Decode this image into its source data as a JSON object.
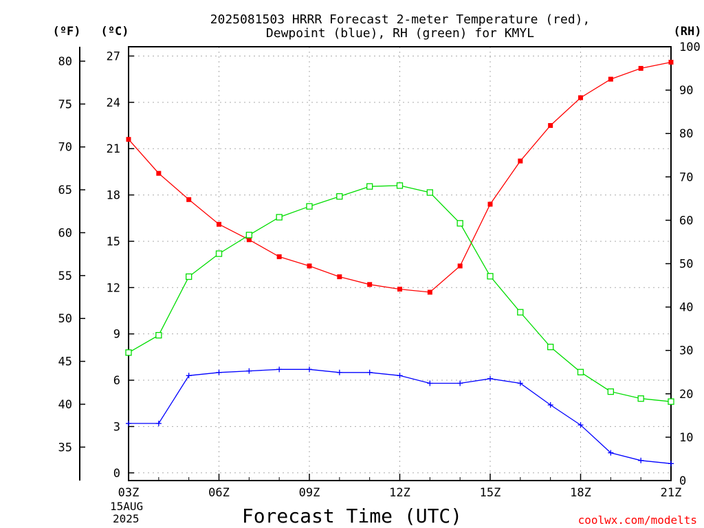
{
  "chart_data": {
    "type": "line",
    "title_line1": "2025081503 HRRR Forecast 2-meter Temperature (red),",
    "title_line2": "Dewpoint (blue), RH (green) for KMYL",
    "xlabel": "Forecast Time (UTC)",
    "unit_f": "(ºF)",
    "unit_c": "(ºC)",
    "unit_rh": "(RH)",
    "watermark": "coolwx.com/modelts",
    "x_date_line1": "15AUG",
    "x_date_line2": "2025",
    "x_hours": [
      3,
      4,
      5,
      6,
      7,
      8,
      9,
      10,
      11,
      12,
      13,
      14,
      15,
      16,
      17,
      18,
      19,
      20,
      21
    ],
    "x_ticks": [
      {
        "hour": 3,
        "label": "03Z"
      },
      {
        "hour": 6,
        "label": "06Z"
      },
      {
        "hour": 9,
        "label": "09Z"
      },
      {
        "hour": 12,
        "label": "12Z"
      },
      {
        "hour": 15,
        "label": "15Z"
      },
      {
        "hour": 18,
        "label": "18Z"
      },
      {
        "hour": 21,
        "label": "21Z"
      }
    ],
    "xlim": [
      3,
      21
    ],
    "ylim_c": [
      -0.5,
      27.6
    ],
    "ylim_rh": [
      0,
      100
    ],
    "y_ticks_c": [
      "0",
      "3",
      "6",
      "9",
      "12",
      "15",
      "18",
      "21",
      "24",
      "27"
    ],
    "y_ticks_f": [
      "35",
      "40",
      "45",
      "50",
      "55",
      "60",
      "65",
      "70",
      "75",
      "80"
    ],
    "y_ticks_rh": [
      "0",
      "10",
      "20",
      "30",
      "40",
      "50",
      "60",
      "70",
      "80",
      "90",
      "100"
    ],
    "grid": true,
    "series": [
      {
        "name": "Temperature",
        "axis": "c",
        "color": "#ff0000",
        "marker": "filled-square",
        "values": [
          21.6,
          19.4,
          17.7,
          16.1,
          15.1,
          14.0,
          13.4,
          12.7,
          12.2,
          11.9,
          11.7,
          13.4,
          17.4,
          20.2,
          22.5,
          24.3,
          25.5,
          26.2,
          26.6
        ]
      },
      {
        "name": "Dewpoint",
        "axis": "c",
        "color": "#0000ff",
        "marker": "plus",
        "values": [
          3.2,
          3.2,
          6.3,
          6.5,
          6.6,
          6.7,
          6.7,
          6.5,
          6.5,
          6.3,
          5.8,
          5.8,
          6.1,
          5.8,
          4.4,
          3.1,
          1.3,
          0.8,
          0.6
        ]
      },
      {
        "name": "RH",
        "axis": "rh",
        "color": "#00dd00",
        "marker": "open-square",
        "values": [
          29.5,
          33.5,
          47.0,
          52.3,
          56.6,
          60.7,
          63.2,
          65.5,
          67.8,
          68.0,
          66.4,
          59.3,
          47.1,
          38.8,
          30.8,
          25.0,
          20.5,
          18.9,
          18.2
        ]
      }
    ]
  },
  "colors": {
    "temperature": "#ff0000",
    "dewpoint": "#0000ff",
    "rh": "#00dd00",
    "axis": "#000000",
    "grid": "#aaaaaa",
    "watermark": "#ff0000"
  }
}
